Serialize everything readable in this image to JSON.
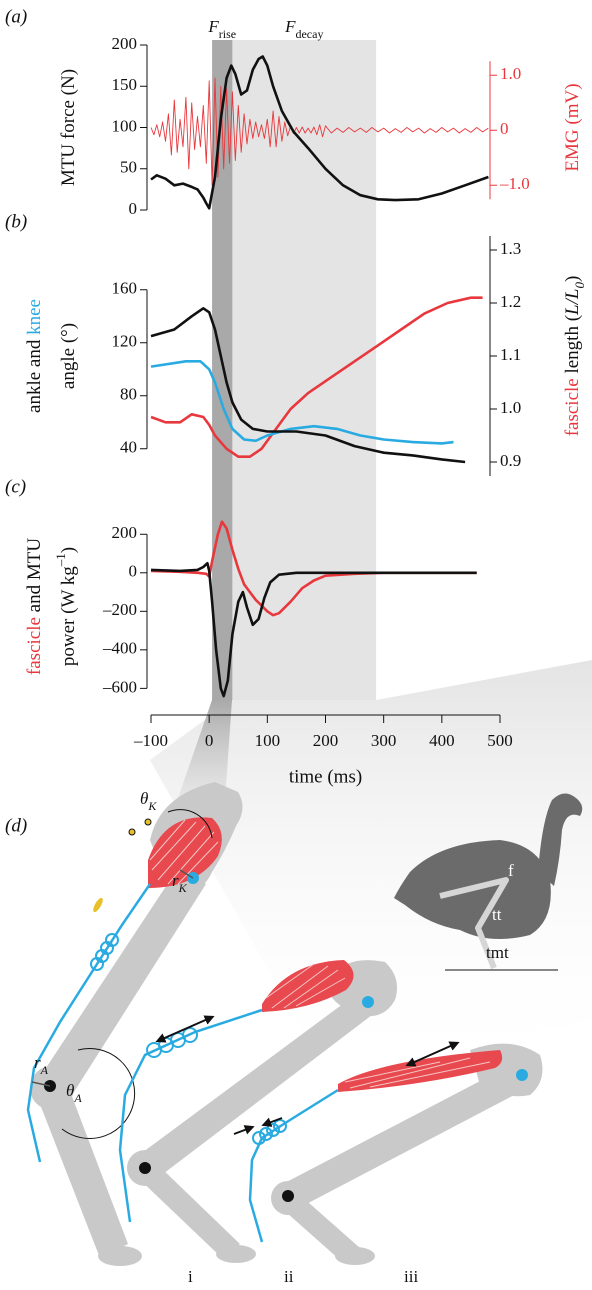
{
  "phases": [
    {
      "label": {
        "symbol": "F",
        "sub": "rise"
      },
      "start": 5,
      "end": 40,
      "color": "#a9a9a9"
    },
    {
      "label": {
        "symbol": "F",
        "sub": "decay"
      },
      "start": 40,
      "end": 287,
      "color": "#e4e4e4"
    }
  ],
  "chart_data": [
    {
      "type": "line",
      "panel_label": "(a)",
      "xlim": [
        -100,
        500
      ],
      "ylim": [
        0,
        200
      ],
      "yticks": [
        0,
        50,
        100,
        150,
        200
      ],
      "ylabel": [
        [
          {
            "text": "MTU force (N)"
          }
        ]
      ],
      "y2lim": [
        -1.45,
        1.55
      ],
      "y2ticks": [
        {
          "value": -1,
          "label": "–1.0"
        },
        0,
        {
          "value": 1,
          "label": "1.0"
        }
      ],
      "y2color": "#e8383d",
      "y2label": [
        [
          {
            "text": "EMG (mV)",
            "color": "#e8383d"
          }
        ]
      ],
      "series": [
        {
          "axis": "y2",
          "color": "#e8383d",
          "x": [
            -100,
            -95,
            -90,
            -85,
            -80,
            -75,
            -70,
            -65,
            -60,
            -55,
            -50,
            -45,
            -40,
            -35,
            -30,
            -25,
            -20,
            -15,
            -10,
            -5,
            0,
            5,
            10,
            15,
            20,
            25,
            30,
            35,
            40,
            45,
            50,
            55,
            60,
            65,
            70,
            75,
            80,
            85,
            90,
            95,
            100,
            105,
            110,
            115,
            120,
            125,
            130,
            135,
            140,
            145,
            150,
            155,
            160,
            165,
            170,
            175,
            180,
            185,
            190,
            195,
            200,
            210,
            220,
            230,
            240,
            250,
            260,
            270,
            280,
            290,
            300,
            310,
            320,
            330,
            340,
            350,
            360,
            370,
            380,
            390,
            400,
            410,
            420,
            430,
            440,
            450,
            460,
            470,
            480
          ],
          "values": [
            0.05,
            -0.08,
            0.1,
            -0.12,
            0.15,
            -0.2,
            0.3,
            -0.45,
            0.55,
            -0.4,
            0.2,
            -0.3,
            0.6,
            -0.7,
            0.5,
            -0.35,
            0.25,
            -0.3,
            0.45,
            -0.6,
            0.9,
            -1.0,
            0.95,
            -0.85,
            0.8,
            -0.7,
            0.75,
            -0.6,
            0.7,
            -0.55,
            0.45,
            -0.4,
            0.3,
            -0.25,
            0.2,
            -0.15,
            0.15,
            -0.12,
            0.1,
            -0.15,
            0.2,
            -0.3,
            0.35,
            -0.3,
            0.25,
            -0.2,
            0.15,
            -0.1,
            0.08,
            -0.06,
            0.05,
            -0.05,
            0.06,
            -0.05,
            0.04,
            -0.05,
            0.06,
            -0.08,
            0.1,
            -0.12,
            0.08,
            -0.05,
            0.04,
            -0.04,
            0.05,
            -0.03,
            0.04,
            -0.04,
            0.05,
            -0.03,
            0.04,
            -0.05,
            0.03,
            -0.04,
            0.05,
            -0.03,
            0.04,
            -0.05,
            0.03,
            -0.04,
            0.05,
            -0.03,
            0.04,
            -0.05,
            0.03,
            -0.04,
            0.05,
            -0.03,
            0.04
          ]
        },
        {
          "color": "#111111",
          "x": [
            -100,
            -90,
            -75,
            -60,
            -45,
            -30,
            -20,
            -10,
            -5,
            0,
            10,
            20,
            30,
            38,
            45,
            55,
            65,
            75,
            85,
            92,
            100,
            110,
            125,
            145,
            170,
            200,
            230,
            260,
            290,
            320,
            360,
            400,
            440,
            480
          ],
          "values": [
            37,
            42,
            38,
            30,
            32,
            28,
            25,
            15,
            8,
            2,
            40,
            110,
            160,
            175,
            165,
            140,
            145,
            170,
            183,
            186,
            175,
            150,
            120,
            95,
            75,
            50,
            30,
            18,
            13,
            12,
            13,
            20,
            30,
            40
          ]
        }
      ]
    },
    {
      "type": "line",
      "panel_label": "(b)",
      "xlim": [
        -100,
        500
      ],
      "ylim": [
        30,
        190
      ],
      "yticks": [
        40,
        80,
        120,
        160
      ],
      "ylabel": [
        [
          {
            "text": "ankle and "
          },
          {
            "text": "knee",
            "color": "#29abe2"
          }
        ],
        [
          {
            "text": "angle (°)"
          }
        ]
      ],
      "y2lim": [
        0.9,
        1.3
      ],
      "y2ticks": [
        0.9,
        {
          "value": 1,
          "label": "1.0"
        },
        1.1,
        1.2,
        1.3
      ],
      "y2label": [
        [
          {
            "text": "fascicle",
            "color": "#e8383d"
          },
          {
            "text": " length ("
          },
          {
            "text": "L/L",
            "style": "italic"
          },
          {
            "text": "0",
            "style": "sub"
          },
          {
            "text": ")"
          }
        ]
      ],
      "series": [
        {
          "axis": "y2",
          "color": "#e8383d",
          "x": [
            -100,
            -75,
            -50,
            -30,
            -10,
            0,
            10,
            30,
            50,
            70,
            90,
            110,
            140,
            170,
            210,
            250,
            290,
            330,
            370,
            410,
            450,
            470
          ],
          "values": [
            0.985,
            0.975,
            0.975,
            0.99,
            0.985,
            0.97,
            0.95,
            0.925,
            0.91,
            0.91,
            0.925,
            0.955,
            1.0,
            1.03,
            1.06,
            1.09,
            1.12,
            1.15,
            1.18,
            1.2,
            1.21,
            1.21
          ]
        },
        {
          "color": "#29abe2",
          "x": [
            -100,
            -40,
            -15,
            0,
            10,
            25,
            40,
            60,
            80,
            100,
            140,
            180,
            220,
            260,
            300,
            350,
            400,
            420
          ],
          "values": [
            102,
            106,
            106,
            100,
            90,
            70,
            55,
            47,
            46,
            50,
            55,
            57,
            55,
            50,
            47,
            45,
            44,
            45
          ]
        },
        {
          "color": "#111111",
          "x": [
            -100,
            -60,
            -30,
            -10,
            0,
            10,
            20,
            30,
            40,
            55,
            75,
            100,
            150,
            200,
            250,
            300,
            350,
            400,
            440
          ],
          "values": [
            125,
            130,
            140,
            146,
            143,
            130,
            110,
            90,
            75,
            62,
            55,
            53,
            53,
            50,
            42,
            37,
            35,
            32,
            30
          ]
        }
      ]
    },
    {
      "type": "line",
      "panel_label": "(c)",
      "xlim": [
        -100,
        500
      ],
      "xticks": [
        {
          "value": -100,
          "label": "–100"
        },
        0,
        100,
        200,
        300,
        400,
        500
      ],
      "xlabel": "time (ms)",
      "ylim": [
        -650,
        300
      ],
      "yticks": [
        {
          "value": -600,
          "label": "–600"
        },
        {
          "value": -400,
          "label": "–400"
        },
        {
          "value": -200,
          "label": "–200"
        },
        0,
        200
      ],
      "ylabel": [
        [
          {
            "text": "fascicle",
            "color": "#e8383d"
          },
          {
            "text": " and MTU"
          }
        ],
        [
          {
            "text": "power (W kg"
          },
          {
            "text": "–1",
            "style": "sup"
          },
          {
            "text": ")"
          }
        ]
      ],
      "series": [
        {
          "color": "#e8383d",
          "x": [
            -100,
            -50,
            -20,
            -5,
            0,
            5,
            15,
            22,
            30,
            40,
            50,
            60,
            70,
            80,
            90,
            100,
            110,
            120,
            140,
            160,
            180,
            200,
            250,
            300,
            350,
            400,
            460
          ],
          "values": [
            10,
            5,
            0,
            -5,
            -20,
            60,
            200,
            265,
            230,
            120,
            20,
            -60,
            -100,
            -140,
            -170,
            -200,
            -220,
            -210,
            -150,
            -80,
            -40,
            -15,
            -5,
            0,
            0,
            0,
            0
          ]
        },
        {
          "color": "#111111",
          "x": [
            -100,
            -50,
            -20,
            -10,
            -3,
            0,
            5,
            12,
            20,
            25,
            32,
            40,
            50,
            58,
            65,
            75,
            85,
            95,
            105,
            120,
            150,
            200,
            300,
            400,
            460
          ],
          "values": [
            15,
            10,
            15,
            30,
            50,
            10,
            -150,
            -400,
            -600,
            -640,
            -560,
            -320,
            -150,
            -100,
            -180,
            -270,
            -240,
            -130,
            -50,
            -10,
            0,
            0,
            0,
            0,
            0
          ]
        }
      ]
    }
  ],
  "diagram": {
    "panel_label": "(d)",
    "labels": [
      {
        "text": "θ",
        "sub": "K"
      },
      {
        "text": "r",
        "sub": "K"
      },
      {
        "text": "r",
        "sub": "A"
      },
      {
        "text": "θ",
        "sub": "A"
      }
    ],
    "bird": [
      "f",
      "tt",
      "tmt"
    ],
    "stages": [
      "i",
      "ii",
      "iii"
    ]
  }
}
